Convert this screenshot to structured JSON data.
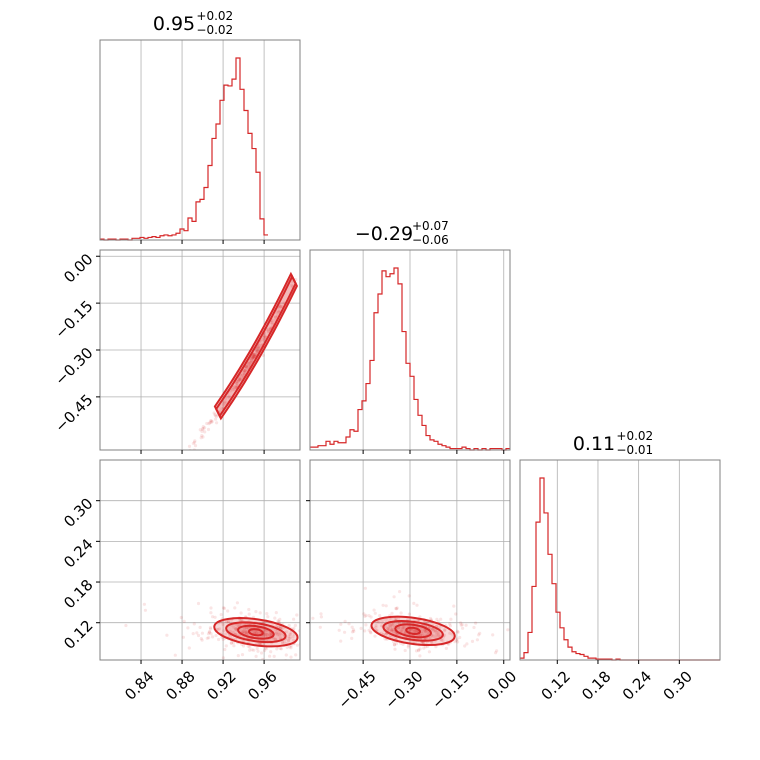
{
  "chart_data": {
    "type": "corner",
    "color": "#d62728",
    "params": [
      {
        "median": "0.95",
        "plus": "+0.02",
        "minus": "−0.02",
        "range": [
          0.8,
          0.995
        ]
      },
      {
        "median": "−0.29",
        "plus": "+0.07",
        "minus": "−0.06",
        "range": [
          -0.62,
          0.02
        ]
      },
      {
        "median": "0.11",
        "plus": "+0.02",
        "minus": "−0.01",
        "range": [
          0.065,
          0.36
        ]
      }
    ],
    "ticks": [
      {
        "values": [
          0.84,
          0.88,
          0.92,
          0.96
        ],
        "labels": [
          "0.84",
          "0.88",
          "0.92",
          "0.96"
        ]
      },
      {
        "values": [
          -0.45,
          -0.3,
          -0.15,
          0.0
        ],
        "labels": [
          "−0.45",
          "−0.30",
          "−0.15",
          "0.00"
        ]
      },
      {
        "values": [
          0.12,
          0.18,
          0.24,
          0.3
        ],
        "labels": [
          "0.12",
          "0.18",
          "0.24",
          "0.30"
        ]
      }
    ],
    "histograms": [
      {
        "bin_start": 0.8,
        "bin_width": 0.0039,
        "counts": [
          1,
          0,
          1,
          1,
          0,
          1,
          1,
          0,
          2,
          2,
          3,
          2,
          3,
          4,
          3,
          5,
          6,
          5,
          6,
          8,
          13,
          11,
          26,
          22,
          45,
          48,
          62,
          88,
          120,
          137,
          165,
          183,
          182,
          190,
          215,
          178,
          153,
          126,
          108,
          80,
          25,
          6
        ]
      },
      {
        "bin_start": -0.62,
        "bin_width": 0.0128,
        "counts": [
          2,
          2,
          3,
          3,
          6,
          4,
          6,
          5,
          5,
          9,
          14,
          13,
          28,
          34,
          46,
          62,
          95,
          108,
          124,
          120,
          122,
          126,
          115,
          82,
          60,
          51,
          35,
          24,
          17,
          10,
          7,
          6,
          4,
          3,
          2,
          1,
          1,
          1,
          2,
          1,
          0,
          1,
          0,
          1,
          0,
          1,
          1,
          1,
          0,
          1
        ]
      },
      {
        "bin_start": 0.065,
        "bin_width": 0.0059,
        "counts": [
          2,
          8,
          30,
          80,
          150,
          198,
          160,
          115,
          83,
          52,
          35,
          22,
          14,
          9,
          7,
          6,
          4,
          2,
          2,
          1,
          1,
          1,
          1,
          0,
          1,
          0,
          0,
          0,
          0,
          0,
          0,
          0,
          0,
          0,
          0,
          0,
          0,
          0,
          0,
          0,
          0,
          0,
          0,
          0,
          0,
          0,
          0,
          0,
          0,
          0
        ]
      }
    ],
    "pairs": [
      {
        "x_param": 0,
        "y_param": 1,
        "relation": "curved-ridge"
      },
      {
        "x_param": 0,
        "y_param": 2,
        "relation": "weak-negative"
      },
      {
        "x_param": 1,
        "y_param": 2,
        "relation": "weak-negative"
      }
    ],
    "grid": true
  }
}
